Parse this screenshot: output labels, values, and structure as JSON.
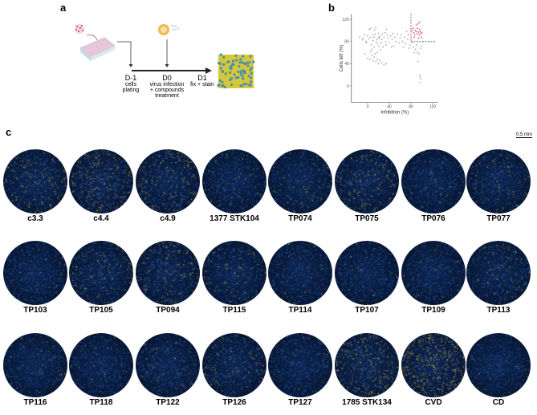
{
  "panel_a": {
    "letter": "a",
    "timeline": [
      {
        "day": "D-1",
        "desc": [
          "cells",
          "plating"
        ]
      },
      {
        "day": "D0",
        "desc": [
          "virus infection",
          "+ compounds",
          "treatment"
        ]
      },
      {
        "day": "D1",
        "desc": [
          "fix + stain"
        ]
      }
    ],
    "icons": [
      "cells-icon",
      "well-plate-icon",
      "virus-icon",
      "compounds-icon",
      "stained-cells-image"
    ]
  },
  "panel_b": {
    "letter": "b",
    "chart_data": {
      "type": "scatter",
      "xlabel": "Inhibition (%)",
      "ylabel": "Cells left (%)",
      "xticks": [
        0,
        40,
        80,
        120
      ],
      "yticks": [
        0,
        40,
        80,
        120
      ],
      "xlim": [
        -30,
        130
      ],
      "ylim": [
        -30,
        130
      ],
      "thresholds": {
        "x": 80,
        "y": 80
      },
      "colors": {
        "hit": "#e0337f",
        "other": "#9a9a9a",
        "threshold": "#555555"
      },
      "series": [
        {
          "color": "#9a9a9a",
          "points": [
            [
              -15,
              88
            ],
            [
              -10,
              83
            ],
            [
              -8,
              86
            ],
            [
              -5,
              92
            ],
            [
              -3,
              80
            ],
            [
              -2,
              78
            ],
            [
              0,
              90
            ],
            [
              2,
              85
            ],
            [
              3,
              102
            ],
            [
              5,
              104
            ],
            [
              6,
              88
            ],
            [
              7,
              74
            ],
            [
              8,
              66
            ],
            [
              10,
              92
            ],
            [
              10,
              82
            ],
            [
              12,
              88
            ],
            [
              12,
              70
            ],
            [
              13,
              101
            ],
            [
              14,
              93
            ],
            [
              15,
              105
            ],
            [
              16,
              80
            ],
            [
              17,
              84
            ],
            [
              18,
              76
            ],
            [
              18,
              60
            ],
            [
              20,
              95
            ],
            [
              20,
              88
            ],
            [
              21,
              72
            ],
            [
              22,
              86
            ],
            [
              23,
              90
            ],
            [
              24,
              65
            ],
            [
              25,
              78
            ],
            [
              26,
              84
            ],
            [
              27,
              94
            ],
            [
              28,
              70
            ],
            [
              30,
              88
            ],
            [
              32,
              96
            ],
            [
              33,
              80
            ],
            [
              34,
              74
            ],
            [
              35,
              102
            ],
            [
              36,
              92
            ],
            [
              38,
              86
            ],
            [
              40,
              78
            ],
            [
              42,
              90
            ],
            [
              44,
              70
            ],
            [
              45,
              84
            ],
            [
              47,
              95
            ],
            [
              48,
              72
            ],
            [
              50,
              88
            ],
            [
              52,
              80
            ],
            [
              55,
              94
            ],
            [
              58,
              78
            ],
            [
              60,
              86
            ],
            [
              62,
              92
            ],
            [
              64,
              80
            ],
            [
              66,
              70
            ],
            [
              68,
              88
            ],
            [
              70,
              76
            ],
            [
              72,
              98
            ],
            [
              74,
              84
            ],
            [
              75,
              92
            ],
            [
              76,
              68
            ],
            [
              78,
              74
            ],
            [
              -5,
              58
            ],
            [
              0,
              50
            ],
            [
              4,
              48
            ],
            [
              8,
              55
            ],
            [
              10,
              45
            ],
            [
              12,
              52
            ],
            [
              15,
              44
            ],
            [
              18,
              48
            ],
            [
              20,
              40
            ],
            [
              22,
              46
            ],
            [
              26,
              42
            ],
            [
              30,
              38
            ],
            [
              34,
              40
            ],
            [
              14,
              58
            ],
            [
              6,
              62
            ],
            [
              82,
              78
            ],
            [
              85,
              70
            ],
            [
              88,
              66
            ],
            [
              90,
              74
            ],
            [
              92,
              60
            ],
            [
              95,
              58
            ],
            [
              97,
              68
            ],
            [
              100,
              72
            ],
            [
              93,
              44
            ],
            [
              86,
              60
            ],
            [
              96,
              20
            ],
            [
              97,
              16
            ],
            [
              98,
              12
            ],
            [
              97,
              6
            ]
          ]
        },
        {
          "color": "#e0337f",
          "points": [
            [
              82,
              100
            ],
            [
              84,
              104
            ],
            [
              85,
              96
            ],
            [
              87,
              92
            ],
            [
              88,
              100
            ],
            [
              90,
              98
            ],
            [
              91,
              94
            ],
            [
              92,
              104
            ],
            [
              94,
              97
            ],
            [
              95,
              92
            ],
            [
              96,
              102
            ],
            [
              97,
              98
            ],
            [
              98,
              94
            ],
            [
              99,
              88
            ],
            [
              94,
              86
            ],
            [
              96,
              115
            ],
            [
              90,
              110
            ],
            [
              93,
              112
            ],
            [
              86,
              88
            ],
            [
              100,
              96
            ]
          ]
        }
      ]
    }
  },
  "panel_c": {
    "letter": "c",
    "scale_bar": "0.5 mm",
    "images": [
      "c3.3",
      "c4.4",
      "c4.9",
      "1377 STK104",
      "TP074",
      "TP075",
      "TP076",
      "TP077",
      "TP103",
      "TP105",
      "TP094",
      "TP115",
      "TP114",
      "TP107",
      "TP109",
      "TP113",
      "TP116",
      "TP118",
      "TP122",
      "TP126",
      "TP127",
      "1785 STK134",
      "CVD",
      "CD"
    ]
  }
}
